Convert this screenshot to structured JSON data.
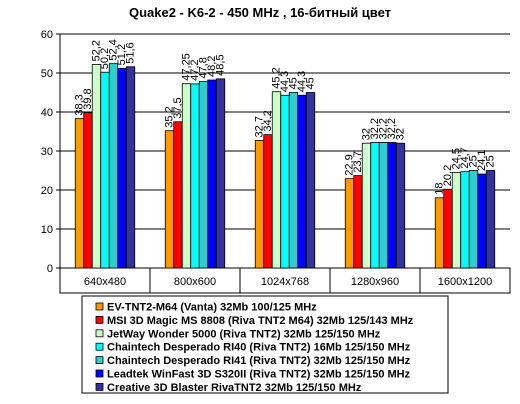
{
  "chart_data": {
    "type": "bar",
    "title": "Quake2 - K6-2 - 450 MHz ,  16-битный цвет",
    "xlabel": "",
    "ylabel": "",
    "ylim": [
      0,
      60
    ],
    "yticks": [
      0,
      10,
      20,
      30,
      40,
      50,
      60
    ],
    "grid": true,
    "legend_position": "bottom",
    "categories": [
      "640x480",
      "800x600",
      "1024x768",
      "1280x960",
      "1600x1200"
    ],
    "series": [
      {
        "name": "EV-TNT2-M64 (Vanta) 32Mb 100/125 MHz",
        "color": "#ff9900",
        "values": [
          38.3,
          35.2,
          32.7,
          22.9,
          18
        ],
        "labels": [
          "38,3",
          "35,2",
          "32,7",
          "22,9",
          "18"
        ]
      },
      {
        "name": "MSI 3D Magic MS 8808 (Riva TNT2 M64) 32Mb 125/143 MHz",
        "color": "#ff0000",
        "values": [
          39.8,
          37.5,
          34.2,
          23.7,
          20.2
        ],
        "labels": [
          "39,8",
          "37,5",
          "34,2",
          "23,7",
          "20,2"
        ]
      },
      {
        "name": "JetWay Wonder 5000 (Riva TNT2) 32Mb 125/150 MHz",
        "color": "#ccffcc",
        "values": [
          52.2,
          47.25,
          45.2,
          32,
          24.5
        ],
        "labels": [
          "52,2",
          "47,25",
          "45,2",
          "32",
          "24,5"
        ]
      },
      {
        "name": "Chaintech Desperado RI40 (Riva TNT2) 16Mb 125/150 MHz",
        "color": "#00ffff",
        "values": [
          50.2,
          47.2,
          44.3,
          32.2,
          24.7
        ],
        "labels": [
          "50,2",
          "47,2",
          "44,3",
          "32,2",
          "24,7"
        ]
      },
      {
        "name": "Chaintech Desperado RI41 (Riva TNT2) 32Mb 125/150 MHz",
        "color": "#33cccc",
        "values": [
          52.4,
          47.8,
          45,
          32.2,
          25
        ],
        "labels": [
          "52,4",
          "47,8",
          "45",
          "32,2",
          "25"
        ]
      },
      {
        "name": "Leadtek WinFast 3D S320II (Riva TNT2) 32Mb 125/150 MHz",
        "color": "#0000ff",
        "values": [
          51.2,
          48.2,
          44.3,
          32.2,
          24.1
        ],
        "labels": [
          "51,2",
          "48,2",
          "44,3",
          "32,2",
          "24,1"
        ]
      },
      {
        "name": "Creative 3D Blaster RivaTNT2 32Mb 125/150 MHz",
        "color": "#333399",
        "values": [
          51.6,
          48.5,
          45,
          32,
          25
        ],
        "labels": [
          "51,6",
          "48,5",
          "45",
          "32",
          "25"
        ]
      }
    ]
  }
}
